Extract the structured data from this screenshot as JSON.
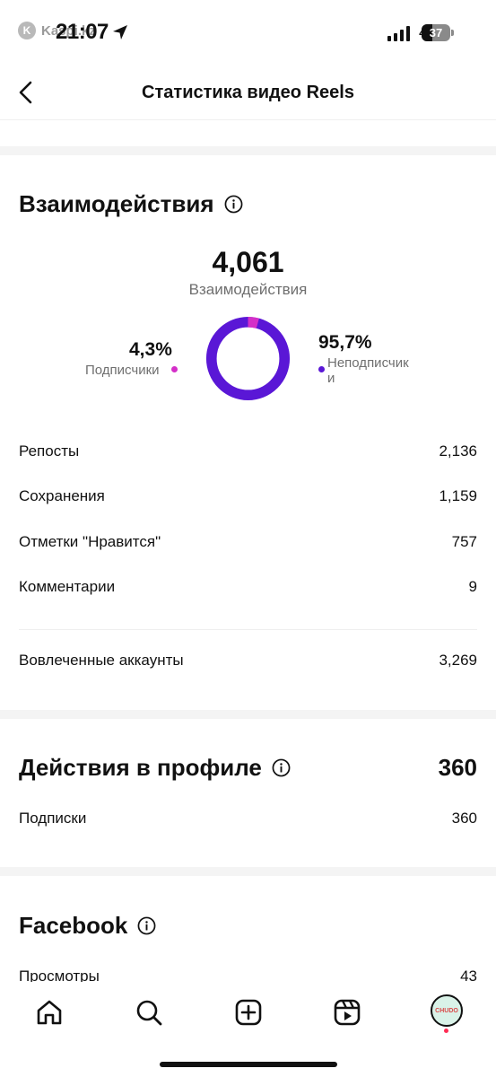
{
  "status_bar": {
    "carrier_badge": "K",
    "carrier": "Kaspi.kz",
    "time": "21:07",
    "network": "4G",
    "battery_level": "37",
    "battery_fraction": 0.37
  },
  "header": {
    "title": "Статистика видео Reels",
    "back_icon": "chevron-left-icon"
  },
  "interactions": {
    "title": "Взаимодействия",
    "info_icon": "info-icon",
    "total": "4,061",
    "total_label": "Взаимодействия",
    "followers_pct": "4,3%",
    "followers_label": "Подписчики",
    "followers_fraction": 0.043,
    "non_followers_pct": "95,7%",
    "non_followers_label_line1": "Неподписчик",
    "non_followers_label_line2": "и",
    "colors": {
      "followers": "#d42fc8",
      "non_followers": "#5a17d6"
    },
    "metrics": [
      {
        "label": "Репосты",
        "value": "2,136"
      },
      {
        "label": "Сохранения",
        "value": "1,159"
      },
      {
        "label": "Отметки \"Нравится\"",
        "value": "757"
      },
      {
        "label": "Комментарии",
        "value": "9"
      }
    ],
    "accounts": {
      "label": "Вовлеченные аккаунты",
      "value": "3,269"
    }
  },
  "profile_actions": {
    "title": "Действия в профиле",
    "total": "360",
    "rows": [
      {
        "label": "Подписки",
        "value": "360"
      }
    ]
  },
  "facebook": {
    "title": "Facebook",
    "rows": [
      {
        "label": "Просмотры",
        "value": "43"
      }
    ]
  },
  "tab_bar": {
    "tabs": [
      "home-icon",
      "search-icon",
      "create-icon",
      "reels-icon",
      "profile-avatar"
    ],
    "avatar_text": "CHUDO"
  }
}
